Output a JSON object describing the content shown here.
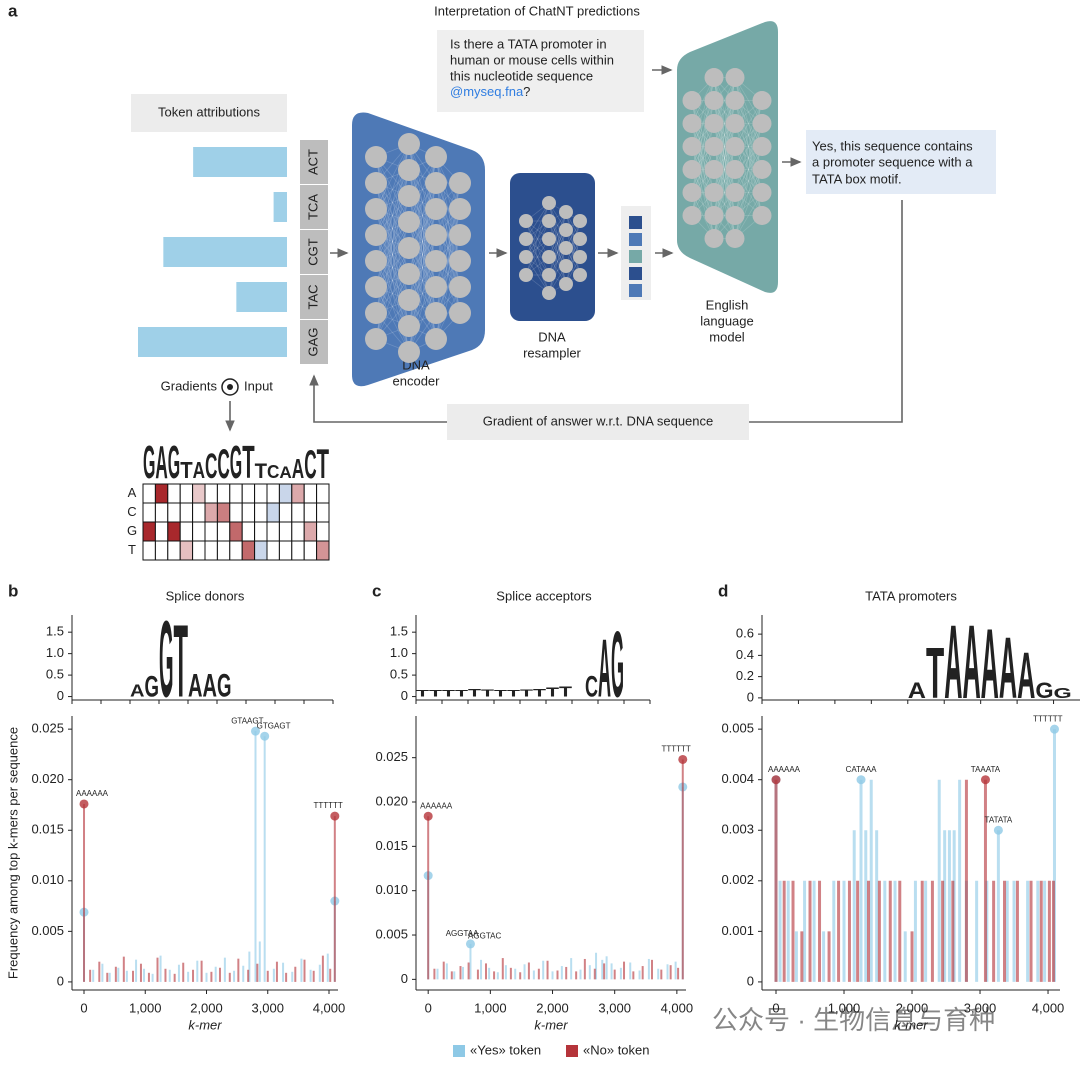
{
  "letter_colors": {
    "A": "#3a8a2e",
    "C": "#1e3fcf",
    "G": "#f0a22e",
    "T": "#e23b2a"
  },
  "diagram": {
    "label": "a",
    "title": "Interpretation of ChatNT predictions",
    "question": [
      "Is there a TATA promoter in",
      "human or mouse cells within",
      "this nucleotide sequence"
    ],
    "question_link": "@myseq.fna",
    "question_end": "?",
    "token_attributions": "Token attributions",
    "tokens": [
      "ACT",
      "TCA",
      "CGT",
      "TAC",
      "GAG"
    ],
    "attributions": [
      0.63,
      0.09,
      0.83,
      0.34,
      1.0
    ],
    "encoder": [
      "DNA",
      "encoder"
    ],
    "resampler": [
      "DNA",
      "resampler"
    ],
    "llm": [
      "English",
      "language",
      "model"
    ],
    "answer": [
      "Yes, this sequence contains",
      "a promoter sequence with a",
      "TATA box motif."
    ],
    "gradient_box": "Gradient of answer w.r.t. DNA sequence",
    "gradients": "Gradients",
    "input": "Input",
    "logo_letters": [
      "G",
      "A",
      "G",
      "T",
      "A",
      "C",
      "C",
      "G",
      "T",
      "T",
      "C",
      "A",
      "A",
      "C",
      "T"
    ],
    "logo_heights": [
      1,
      1,
      1,
      0.5,
      0.5,
      0.75,
      0.9,
      1,
      1,
      0.45,
      0.4,
      0.35,
      0.6,
      0.85,
      0.9
    ],
    "heatmap_rows": [
      "A",
      "C",
      "G",
      "T"
    ],
    "heatmap": [
      [
        0,
        1.0,
        0,
        0,
        0.25,
        0,
        0,
        0,
        0,
        0,
        0,
        -0.3,
        0.4,
        0,
        0
      ],
      [
        0,
        0,
        0,
        0,
        0,
        0.4,
        0.6,
        0,
        0,
        0,
        -0.3,
        0,
        0,
        0,
        0
      ],
      [
        1.0,
        0,
        1.0,
        0,
        0,
        0,
        0,
        0.7,
        0,
        0,
        0,
        0,
        0,
        0.4,
        0
      ],
      [
        0,
        0,
        0,
        0.3,
        0,
        0,
        0,
        0,
        0.7,
        -0.3,
        0,
        0,
        0,
        0,
        0.5
      ]
    ]
  },
  "chart_data": [
    {
      "type": "stem",
      "label": "b",
      "title": "Splice donors",
      "logo": {
        "xlim": [
          0,
          18
        ],
        "ylim": [
          -0.08,
          1.9
        ],
        "yticks": [
          0,
          0.5,
          {
            "value": 1,
            "label": "1.0"
          },
          1.5
        ],
        "positions": [
          4,
          5,
          6,
          7,
          8,
          9,
          10
        ],
        "letters": [
          "A",
          "G",
          "G",
          "T",
          "A",
          "A",
          "G"
        ],
        "heights": [
          0.3,
          0.5,
          1.85,
          1.75,
          0.55,
          0.55,
          0.55
        ]
      },
      "xlim": [
        -196,
        4147
      ],
      "xticks": [
        0,
        {
          "value": 1000,
          "label": "1,000"
        },
        {
          "value": 2000,
          "label": "2,000"
        },
        {
          "value": 3000,
          "label": "3,000"
        },
        {
          "value": 4000,
          "label": "4,000"
        }
      ],
      "ylim": [
        -0.0008,
        0.0263
      ],
      "yticks": [
        0,
        0.005,
        {
          "value": 0.01,
          "label": "0.010"
        },
        0.015,
        {
          "value": 0.02,
          "label": "0.020"
        },
        0.025
      ],
      "x_label": "k-mer",
      "y_label": "Frequency among top k-mers per sequence",
      "legend": "bottom",
      "series": [
        {
          "name": "«Yes» token",
          "color": "#8ec9e6",
          "x": [
            0,
            150,
            300,
            420,
            560,
            700,
            850,
            980,
            1120,
            1250,
            1400,
            1550,
            1700,
            1850,
            2000,
            2150,
            2300,
            2450,
            2600,
            2700,
            2800,
            2870,
            2950,
            3100,
            3250,
            3400,
            3550,
            3700,
            3850,
            3980,
            4095
          ],
          "values": [
            0.0069,
            0.0012,
            0.0018,
            0.0009,
            0.0014,
            0.0011,
            0.0022,
            0.0013,
            0.0008,
            0.0026,
            0.0012,
            0.0017,
            0.001,
            0.0021,
            0.0009,
            0.0015,
            0.0024,
            0.0011,
            0.0016,
            0.003,
            0.0248,
            0.004,
            0.0243,
            0.0013,
            0.0019,
            0.001,
            0.0023,
            0.0012,
            0.0017,
            0.0028,
            0.008
          ]
        },
        {
          "name": "«No» token",
          "color": "#b5343a",
          "x": [
            0,
            100,
            250,
            380,
            520,
            650,
            800,
            930,
            1060,
            1200,
            1330,
            1480,
            1620,
            1780,
            1920,
            2080,
            2220,
            2380,
            2520,
            2680,
            2830,
            3000,
            3150,
            3300,
            3450,
            3600,
            3750,
            3900,
            4020,
            4095
          ],
          "values": [
            0.0176,
            0.0012,
            0.002,
            0.0009,
            0.0015,
            0.0025,
            0.0011,
            0.0018,
            0.0009,
            0.0024,
            0.0013,
            0.0008,
            0.0019,
            0.0012,
            0.0021,
            0.001,
            0.0014,
            0.0009,
            0.0023,
            0.0012,
            0.0018,
            0.0011,
            0.002,
            0.0009,
            0.0015,
            0.0022,
            0.0011,
            0.0026,
            0.0013,
            0.0164
          ]
        }
      ],
      "annotations": [
        {
          "text": "AAAAAA",
          "x": 0,
          "y": 0.0176
        },
        {
          "text": "GTAAGT",
          "x": 2800,
          "y": 0.0248
        },
        {
          "text": "GTGAGT",
          "x": 2950,
          "y": 0.0243
        },
        {
          "text": "TTTTTT",
          "x": 4095,
          "y": 0.0164
        }
      ]
    },
    {
      "type": "stem",
      "label": "c",
      "title": "Splice acceptors",
      "logo": {
        "xlim": [
          0,
          18
        ],
        "ylim": [
          -0.08,
          1.9
        ],
        "yticks": [
          0,
          0.5,
          {
            "value": 1,
            "label": "1.0"
          },
          1.5
        ],
        "positions": [
          0,
          1,
          2,
          3,
          4,
          5,
          6,
          7,
          8,
          9,
          10,
          11,
          13,
          14,
          15
        ],
        "letters": [
          "T",
          "T",
          "T",
          "T",
          "T",
          "T",
          "T",
          "T",
          "T",
          "T",
          "T",
          "T",
          "C",
          "A",
          "G"
        ],
        "heights": [
          0.15,
          0.15,
          0.16,
          0.16,
          0.18,
          0.17,
          0.16,
          0.16,
          0.17,
          0.18,
          0.22,
          0.25,
          0.5,
          1.4,
          1.6
        ]
      },
      "xlim": [
        -196,
        4147
      ],
      "xticks": [
        0,
        {
          "value": 1000,
          "label": "1,000"
        },
        {
          "value": 2000,
          "label": "2,000"
        },
        {
          "value": 3000,
          "label": "3,000"
        },
        {
          "value": 4000,
          "label": "4,000"
        }
      ],
      "ylim": [
        -0.0012,
        0.0297
      ],
      "yticks": [
        0,
        0.005,
        {
          "value": 0.01,
          "label": "0.010"
        },
        0.015,
        {
          "value": 0.02,
          "label": "0.020"
        },
        0.025
      ],
      "x_label": "k-mer",
      "series": [
        {
          "name": "«Yes» token",
          "color": "#8ec9e6",
          "x": [
            0,
            150,
            300,
            420,
            560,
            680,
            850,
            980,
            1120,
            1250,
            1400,
            1550,
            1700,
            1850,
            2000,
            2150,
            2300,
            2450,
            2600,
            2700,
            2800,
            2870,
            2950,
            3100,
            3250,
            3400,
            3550,
            3700,
            3850,
            3980,
            4095
          ],
          "values": [
            0.0117,
            0.0012,
            0.0018,
            0.0009,
            0.0014,
            0.004,
            0.0022,
            0.0013,
            0.0008,
            0.0016,
            0.0012,
            0.0017,
            0.001,
            0.0021,
            0.0009,
            0.0015,
            0.0024,
            0.0011,
            0.0016,
            0.003,
            0.0022,
            0.0026,
            0.0018,
            0.0013,
            0.0019,
            0.001,
            0.0023,
            0.0012,
            0.0017,
            0.002,
            0.0217
          ]
        },
        {
          "name": "«No» token",
          "color": "#b5343a",
          "x": [
            0,
            100,
            250,
            380,
            520,
            650,
            800,
            930,
            1060,
            1200,
            1330,
            1480,
            1620,
            1780,
            1920,
            2080,
            2220,
            2380,
            2520,
            2680,
            2830,
            3000,
            3150,
            3300,
            3450,
            3600,
            3750,
            3900,
            4020,
            4095
          ],
          "values": [
            0.0184,
            0.0012,
            0.002,
            0.0009,
            0.0015,
            0.0019,
            0.0011,
            0.0018,
            0.0009,
            0.0024,
            0.0013,
            0.0008,
            0.0019,
            0.0012,
            0.0021,
            0.001,
            0.0014,
            0.0009,
            0.0023,
            0.0012,
            0.0018,
            0.0011,
            0.002,
            0.0009,
            0.0015,
            0.0022,
            0.0011,
            0.0016,
            0.0013,
            0.0248
          ]
        }
      ],
      "annotations": [
        {
          "text": "AAAAAA",
          "x": 0,
          "y": 0.0184
        },
        {
          "text": "AGGTAA",
          "x": 680,
          "y": 0.004
        },
        {
          "text": "AGGTAC",
          "x": 770,
          "y": 0.0037
        },
        {
          "text": "TTTTTT",
          "x": 4095,
          "y": 0.0248
        }
      ]
    },
    {
      "type": "stem",
      "label": "d",
      "title": "TATA promoters",
      "logo": {
        "xlim": [
          0,
          18
        ],
        "ylim": [
          -0.02,
          0.78
        ],
        "yticks": [
          0,
          0.2,
          0.4,
          0.6
        ],
        "positions": [
          8,
          9,
          10,
          11,
          12,
          13,
          14,
          15,
          16
        ],
        "letters": [
          "A",
          "T",
          "A",
          "A",
          "A",
          "A",
          "A",
          "G",
          "G"
        ],
        "heights": [
          0.15,
          0.5,
          0.72,
          0.72,
          0.68,
          0.6,
          0.45,
          0.15,
          0.1
        ]
      },
      "xlim": [
        -206,
        4176
      ],
      "xticks": [
        0,
        {
          "value": 1000,
          "label": "1,000"
        },
        {
          "value": 2000,
          "label": "2,000"
        },
        {
          "value": 3000,
          "label": "3,000"
        },
        {
          "value": 4000,
          "label": "4,000"
        }
      ],
      "ylim": [
        -0.00016,
        0.00526
      ],
      "yticks": [
        0,
        0.001,
        0.002,
        0.003,
        0.004,
        0.005
      ],
      "x_label": "k-mer",
      "series": [
        {
          "name": "«Yes» token",
          "color": "#8ec9e6",
          "x": [
            0,
            60,
            180,
            300,
            420,
            560,
            700,
            850,
            1000,
            1150,
            1250,
            1320,
            1400,
            1480,
            1600,
            1750,
            1900,
            2050,
            2200,
            2400,
            2480,
            2550,
            2620,
            2700,
            2800,
            2950,
            3100,
            3270,
            3400,
            3500,
            3700,
            3850,
            3950,
            4095
          ],
          "values": [
            0.004,
            0.002,
            0.002,
            0.001,
            0.002,
            0.002,
            0.001,
            0.002,
            0.002,
            0.003,
            0.004,
            0.003,
            0.004,
            0.003,
            0.002,
            0.002,
            0.001,
            0.002,
            0.002,
            0.004,
            0.003,
            0.003,
            0.003,
            0.004,
            0.002,
            0.002,
            0.002,
            0.003,
            0.002,
            0.002,
            0.002,
            0.002,
            0.002,
            0.005
          ]
        },
        {
          "name": "«No» token",
          "color": "#b5343a",
          "x": [
            0,
            120,
            250,
            380,
            500,
            640,
            780,
            920,
            1080,
            1200,
            1360,
            1520,
            1680,
            1820,
            2000,
            2150,
            2300,
            2450,
            2600,
            2800,
            3080,
            3200,
            3360,
            3550,
            3750,
            3900,
            4020,
            4080
          ],
          "values": [
            0.004,
            0.002,
            0.002,
            0.001,
            0.002,
            0.002,
            0.001,
            0.002,
            0.002,
            0.002,
            0.002,
            0.002,
            0.002,
            0.002,
            0.001,
            0.002,
            0.002,
            0.002,
            0.002,
            0.004,
            0.004,
            0.002,
            0.002,
            0.002,
            0.002,
            0.002,
            0.002,
            0.002
          ]
        }
      ],
      "annotations": [
        {
          "text": "AAAAAA",
          "x": 0,
          "y": 0.004
        },
        {
          "text": "CATAAA",
          "x": 1250,
          "y": 0.004
        },
        {
          "text": "TAAATA",
          "x": 3080,
          "y": 0.004
        },
        {
          "text": "TATATA",
          "x": 3270,
          "y": 0.003
        },
        {
          "text": "TTTTTT",
          "x": 4095,
          "y": 0.005
        }
      ]
    }
  ],
  "watermark": "公众号 · 生物信息与育种"
}
